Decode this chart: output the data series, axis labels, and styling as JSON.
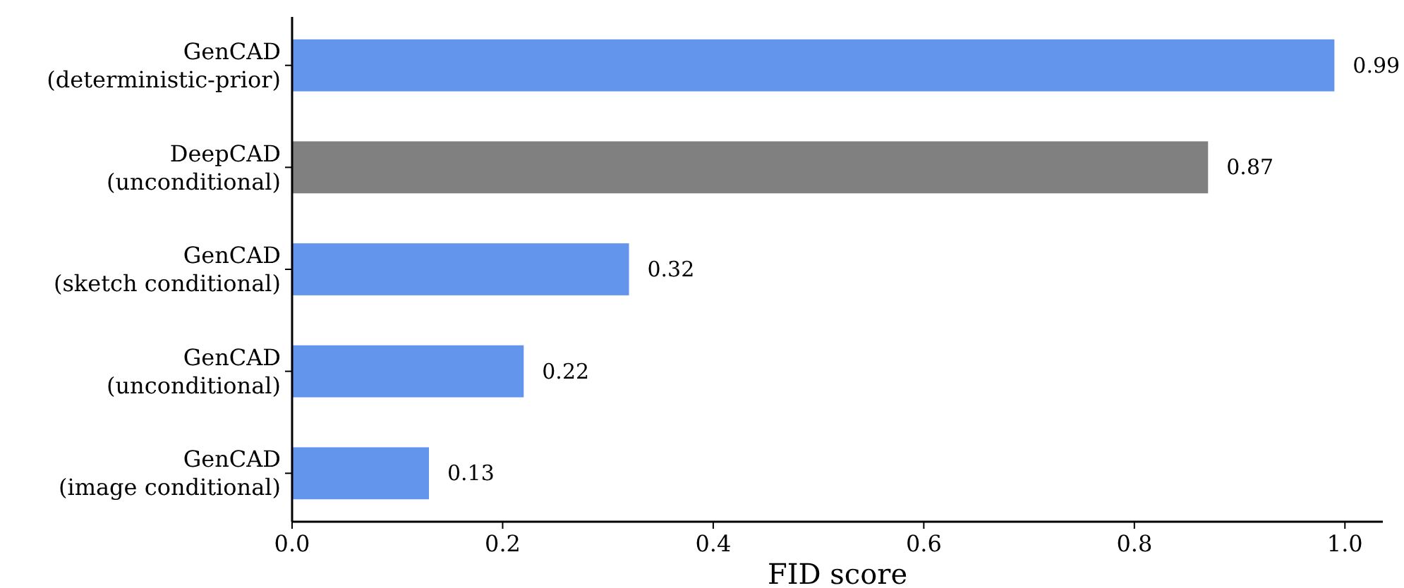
{
  "chart_data": {
    "type": "bar",
    "orientation": "horizontal",
    "xlabel": "FID score",
    "categories": [
      "GenCAD\n(deterministic-prior)",
      "DeepCAD\n(unconditional)",
      "GenCAD\n(sketch conditional)",
      "GenCAD\n(unconditional)",
      "GenCAD\n(image conditional)"
    ],
    "values": [
      0.99,
      0.87,
      0.32,
      0.22,
      0.13
    ],
    "colors": [
      "#6495ed",
      "#808080",
      "#6495ed",
      "#6495ed",
      "#6495ed"
    ],
    "xlim": [
      0,
      1.036
    ],
    "xticks": [
      {
        "value": 0,
        "label": "0.0"
      },
      {
        "value": 0.2,
        "label": "0.2"
      },
      {
        "value": 0.4,
        "label": "0.4"
      },
      {
        "value": 0.6,
        "label": "0.6"
      },
      {
        "value": 0.8,
        "label": "0.8"
      },
      {
        "value": 1,
        "label": "1.0"
      }
    ],
    "data_labels": true
  }
}
